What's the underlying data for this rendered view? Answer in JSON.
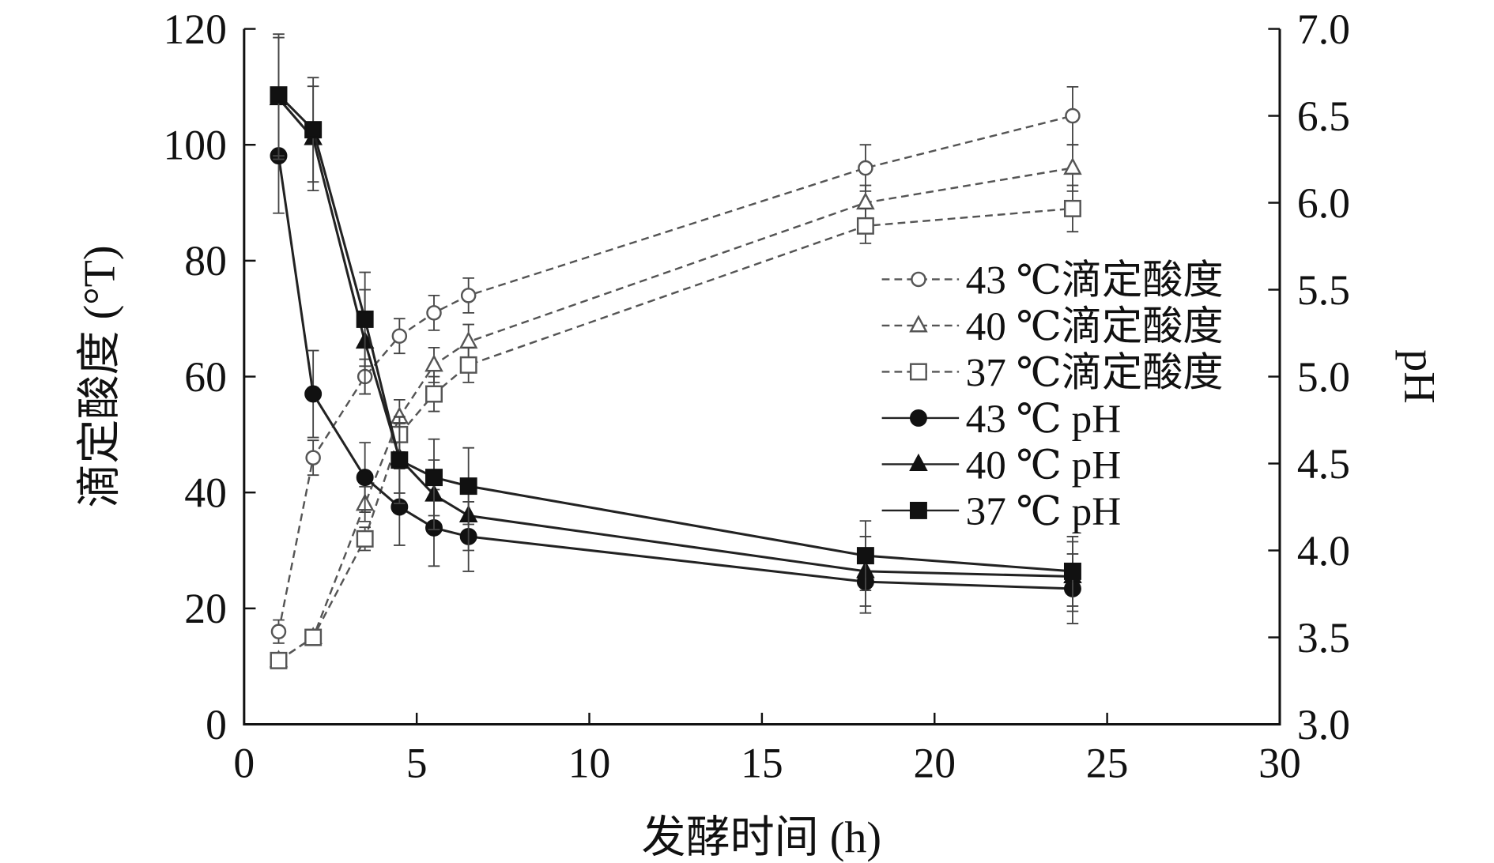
{
  "chart_data": {
    "type": "line",
    "xlabel": "发酵时间 (h)",
    "ylabel": "滴定酸度 (°T)",
    "y2label": "pH",
    "xlim": [
      0,
      30
    ],
    "ylim": [
      0,
      120
    ],
    "y2lim": [
      3.0,
      7.0
    ],
    "xticks": [
      "0",
      "5",
      "10",
      "15",
      "20",
      "25",
      "30"
    ],
    "yticks": [
      "0",
      "20",
      "40",
      "60",
      "80",
      "100",
      "120"
    ],
    "y2ticks": [
      "3.0",
      "3.5",
      "4.0",
      "4.5",
      "5.0",
      "5.5",
      "6.0",
      "6.5",
      "7.0"
    ],
    "x": [
      1,
      2,
      3.5,
      4.5,
      5.5,
      6.5,
      18,
      24
    ],
    "legend_position": "center-right",
    "series": [
      {
        "name": "43 ℃滴定酸度",
        "axis": "left",
        "marker": "circle-open",
        "dash": true,
        "values": [
          16,
          46,
          60,
          67,
          71,
          74,
          96,
          105
        ],
        "err": [
          2,
          3,
          3,
          3,
          3,
          3,
          4,
          5
        ]
      },
      {
        "name": "40 ℃滴定酸度",
        "axis": "left",
        "marker": "triangle-open",
        "dash": true,
        "values": [
          11,
          15,
          38,
          53,
          62,
          66,
          90,
          96
        ],
        "err": [
          1,
          1,
          3,
          3,
          3,
          3,
          3,
          4
        ]
      },
      {
        "name": "37 ℃滴定酸度",
        "axis": "left",
        "marker": "square-open",
        "dash": true,
        "values": [
          11,
          15,
          32,
          50,
          57,
          62,
          86,
          89
        ],
        "err": [
          1,
          1,
          2,
          3,
          3,
          3,
          3,
          4
        ]
      },
      {
        "name": "43 ℃ pH",
        "axis": "right",
        "marker": "circle",
        "dash": false,
        "values": [
          6.27,
          4.9,
          4.42,
          4.25,
          4.13,
          4.08,
          3.82,
          3.78
        ],
        "err": [
          0.33,
          0.25,
          0.2,
          0.22,
          0.22,
          0.2,
          0.18,
          0.2
        ]
      },
      {
        "name": "40 ℃ pH",
        "axis": "right",
        "marker": "triangle",
        "dash": false,
        "values": [
          6.6,
          6.37,
          5.2,
          4.53,
          4.32,
          4.2,
          3.88,
          3.85
        ],
        "err": [
          0.35,
          0.3,
          0.3,
          0.2,
          0.2,
          0.2,
          0.2,
          0.2
        ]
      },
      {
        "name": "37 ℃ pH",
        "axis": "right",
        "marker": "square",
        "dash": false,
        "values": [
          6.62,
          6.42,
          5.33,
          4.52,
          4.42,
          4.37,
          3.97,
          3.88
        ],
        "err": [
          0.35,
          0.3,
          0.27,
          0.25,
          0.22,
          0.22,
          0.2,
          0.2
        ]
      }
    ]
  }
}
